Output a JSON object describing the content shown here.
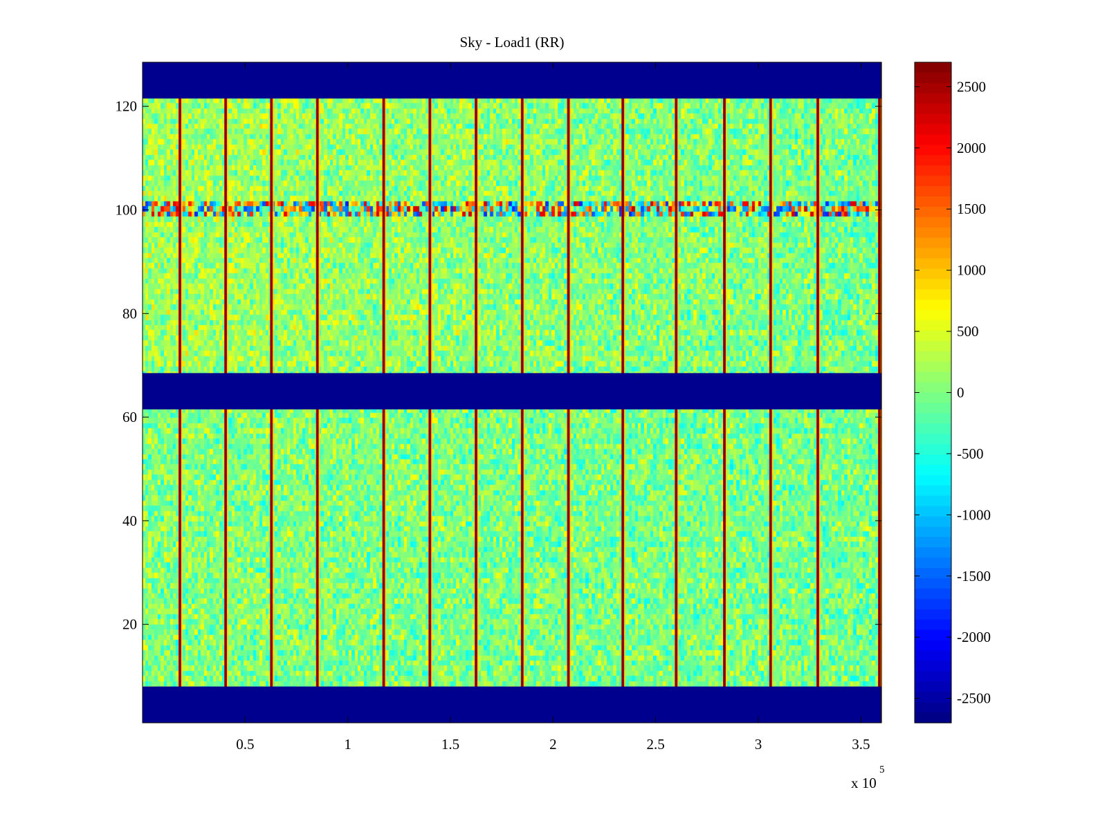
{
  "chart_data": {
    "type": "heatmap",
    "title": "Sky - Load1 (RR)",
    "xlabel": "",
    "ylabel": "",
    "x_exponent_label": "x 10",
    "x_exponent_power": "5",
    "xlim": [
      0,
      3.6
    ],
    "ylim": [
      1,
      128.5
    ],
    "x_ticks": [
      0.5,
      1,
      1.5,
      2,
      2.5,
      3,
      3.5
    ],
    "x_tick_labels": [
      "0.5",
      "1",
      "1.5",
      "2",
      "2.5",
      "3",
      "3.5"
    ],
    "y_ticks": [
      20,
      40,
      60,
      80,
      100,
      120
    ],
    "y_tick_labels": [
      "20",
      "40",
      "60",
      "80",
      "100",
      "120"
    ],
    "colorbar": {
      "colormap": "jet",
      "clim": [
        -2700,
        2700
      ],
      "ticks": [
        2500,
        2000,
        1500,
        1000,
        500,
        0,
        -500,
        -1000,
        -1500,
        -2000,
        -2500
      ],
      "tick_labels": [
        "2500",
        "2000",
        "1500",
        "1000",
        "500",
        "0",
        "-500",
        "-1000",
        "-1500",
        "-2000",
        "-2500"
      ]
    },
    "masked_row_bands": [
      {
        "from": 1,
        "to": 8,
        "value": -2700
      },
      {
        "from": 61.5,
        "to": 68.5,
        "value": -2700
      },
      {
        "from": 121.5,
        "to": 128.5,
        "value": -2700
      }
    ],
    "anomalous_row_band": {
      "from": 98.5,
      "to": 101.5,
      "note": "high-variance channels"
    },
    "spike_columns_x": [
      0.182,
      0.405,
      0.628,
      0.852,
      1.175,
      1.4,
      1.625,
      1.85,
      2.075,
      2.34,
      2.6,
      2.835,
      3.06,
      3.29,
      3.59
    ],
    "spike_value": 2300,
    "background_value_range": [
      -800,
      700
    ]
  },
  "colors": {
    "background": "#ffffff",
    "masked": "#00008f",
    "axis": "#000000"
  }
}
